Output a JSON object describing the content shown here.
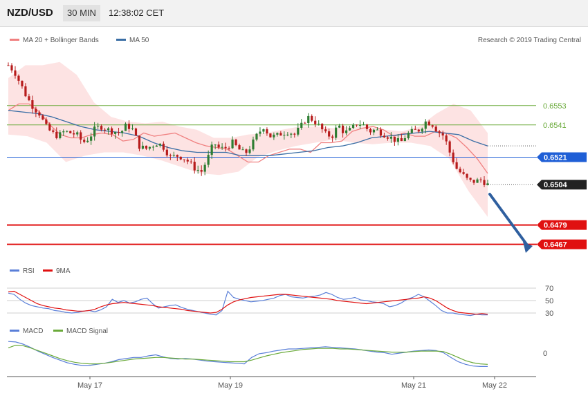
{
  "header": {
    "pair": "NZD/USD",
    "timeframe": "30 MIN",
    "time": "12:38:02 CET"
  },
  "watermark": "Research © 2019 Trading Central",
  "colors": {
    "ma20": "#f08080",
    "bollinger_fill": "#fde3e3",
    "ma50": "#3a6ea5",
    "support": "#e01010",
    "level_green": "#6aaa3a",
    "pivot_blue": "#1f5fd6",
    "bull": "#2e7d32",
    "bear": "#b71c1c",
    "rsi": "#5a7fd8",
    "rsi_ma": "#e01010",
    "macd": "#5a7fd8",
    "macd_signal": "#6aaa3a",
    "arrow": "#2f5f9f"
  },
  "chart_data": [
    {
      "type": "candlestick",
      "legend": [
        {
          "name": "MA 20 + Bollinger Bands",
          "color": "#f08080"
        },
        {
          "name": "MA 50",
          "color": "#3a6ea5"
        }
      ],
      "x_ticks": [
        "May 17",
        "May 19",
        "May 21",
        "May 22"
      ],
      "ylim": [
        0.646,
        0.6585
      ],
      "levels": [
        {
          "value": 0.6553,
          "label": "0.6553",
          "color": "#6aaa3a",
          "style": "line",
          "tag": "text"
        },
        {
          "value": 0.6541,
          "label": "0.6541",
          "color": "#6aaa3a",
          "style": "line",
          "tag": "text"
        },
        {
          "value": 0.6521,
          "label": "0.6521",
          "color": "#1f5fd6",
          "style": "line",
          "tag": "box"
        },
        {
          "value": 0.6504,
          "label": "0.6504",
          "color": "#222222",
          "style": "dotted",
          "tag": "box"
        },
        {
          "value": 0.6479,
          "label": "0.6479",
          "color": "#e01010",
          "style": "line",
          "tag": "box"
        },
        {
          "value": 0.6467,
          "label": "0.6467",
          "color": "#e01010",
          "style": "line",
          "tag": "box"
        }
      ],
      "close_path": [
        0.6578,
        0.6574,
        0.6566,
        0.6558,
        0.6552,
        0.6548,
        0.654,
        0.6536,
        0.6534,
        0.6537,
        0.6536,
        0.6535,
        0.653,
        0.6533,
        0.6539,
        0.654,
        0.6538,
        0.6537,
        0.6536,
        0.6541,
        0.6538,
        0.6528,
        0.6526,
        0.6528,
        0.653,
        0.6527,
        0.6521,
        0.6522,
        0.6521,
        0.6518,
        0.6514,
        0.6512,
        0.652,
        0.653,
        0.6526,
        0.6527,
        0.653,
        0.6526,
        0.6523,
        0.6528,
        0.6535,
        0.654,
        0.6534,
        0.6534,
        0.6536,
        0.6537,
        0.6535,
        0.654,
        0.6546,
        0.6544,
        0.654,
        0.6535,
        0.6534,
        0.6541,
        0.6536,
        0.6538,
        0.6542,
        0.6541,
        0.6537,
        0.6538,
        0.6536,
        0.6534,
        0.6532,
        0.653,
        0.6535,
        0.6537,
        0.6538,
        0.6543,
        0.6542,
        0.6537,
        0.6534,
        0.6523,
        0.6514,
        0.651,
        0.6506,
        0.6506,
        0.6507,
        0.6504
      ],
      "ma20_path": [
        0.655,
        0.6554,
        0.6554,
        0.6549,
        0.6541,
        0.6535,
        0.6533,
        0.6533,
        0.6535,
        0.6536,
        0.6535,
        0.6531,
        0.6532,
        0.6536,
        0.6534,
        0.6535,
        0.6536,
        0.6533,
        0.653,
        0.6528,
        0.6527,
        0.6526,
        0.6522,
        0.6518,
        0.6518,
        0.6522,
        0.6524,
        0.6526,
        0.6526,
        0.6524,
        0.653,
        0.653,
        0.6531,
        0.6537,
        0.6539,
        0.654,
        0.6538,
        0.6534,
        0.6536,
        0.6534,
        0.6534,
        0.6537,
        0.6536,
        0.6533,
        0.6527,
        0.652,
        0.6511
      ],
      "ma50_path": [
        0.655,
        0.6549,
        0.6548,
        0.6546,
        0.6543,
        0.654,
        0.6538,
        0.6537,
        0.6536,
        0.6534,
        0.653,
        0.6527,
        0.6525,
        0.6524,
        0.6524,
        0.6524,
        0.6522,
        0.6522,
        0.6522,
        0.6523,
        0.6524,
        0.6525,
        0.6527,
        0.6528,
        0.653,
        0.6533,
        0.6534,
        0.6535,
        0.6536,
        0.6537,
        0.6536,
        0.6535,
        0.6531,
        0.6528
      ],
      "bb_upper_path": [
        0.657,
        0.6578,
        0.6578,
        0.658,
        0.6572,
        0.6555,
        0.6546,
        0.6543,
        0.6542,
        0.6543,
        0.654,
        0.6538,
        0.6533,
        0.6533,
        0.6535,
        0.6536,
        0.6538,
        0.654,
        0.654,
        0.6539,
        0.654,
        0.654,
        0.6538,
        0.6537,
        0.654,
        0.6548,
        0.6554,
        0.655,
        0.6536
      ],
      "bb_lower_path": [
        0.6535,
        0.6534,
        0.653,
        0.6518,
        0.6522,
        0.6524,
        0.6524,
        0.6522,
        0.6519,
        0.6515,
        0.6511,
        0.651,
        0.6512,
        0.6521,
        0.6525,
        0.6528,
        0.653,
        0.6532,
        0.653,
        0.6529,
        0.653,
        0.653,
        0.6528,
        0.652,
        0.65,
        0.6484
      ]
    },
    {
      "type": "line",
      "legend": [
        {
          "name": "RSI",
          "color": "#5a7fd8"
        },
        {
          "name": "9MA",
          "color": "#e01010"
        }
      ],
      "y_ticks": [
        70,
        50,
        30
      ],
      "ylim": [
        20,
        80
      ],
      "series": [
        {
          "name": "RSI",
          "values": [
            62,
            60,
            52,
            46,
            42,
            40,
            38,
            37,
            34,
            33,
            31,
            30,
            31,
            33,
            34,
            32,
            35,
            40,
            52,
            47,
            50,
            46,
            48,
            52,
            54,
            45,
            38,
            40,
            42,
            43,
            39,
            36,
            34,
            32,
            30,
            28,
            27,
            34,
            65,
            55,
            52,
            50,
            48,
            49,
            50,
            52,
            54,
            58,
            60,
            56,
            55,
            54,
            56,
            57,
            59,
            63,
            60,
            55,
            52,
            53,
            55,
            51,
            50,
            48,
            47,
            45,
            40,
            42,
            46,
            52,
            55,
            60,
            56,
            49,
            42,
            34,
            30,
            30,
            28,
            27,
            26,
            28,
            27,
            27
          ]
        },
        {
          "name": "9MA",
          "values": [
            64,
            65,
            60,
            55,
            50,
            45,
            42,
            40,
            38,
            37,
            35,
            34,
            33,
            33,
            34,
            36,
            40,
            43,
            45,
            46,
            47,
            46,
            45,
            44,
            43,
            42,
            40,
            39,
            38,
            37,
            36,
            34,
            33,
            32,
            31,
            30,
            31,
            36,
            43,
            48,
            51,
            53,
            55,
            56,
            57,
            58,
            59,
            60,
            60,
            59,
            58,
            57,
            56,
            55,
            54,
            53,
            52,
            50,
            49,
            48,
            47,
            46,
            45,
            46,
            47,
            48,
            49,
            50,
            51,
            52,
            53,
            54,
            56,
            54,
            50,
            44,
            38,
            34,
            31,
            30,
            29,
            28,
            29,
            28
          ]
        }
      ]
    },
    {
      "type": "line",
      "legend": [
        {
          "name": "MACD",
          "color": "#5a7fd8"
        },
        {
          "name": "MACD Signal",
          "color": "#6aaa3a"
        }
      ],
      "y_ticks": [
        0
      ],
      "ylim": [
        -0.004,
        0.003
      ],
      "series": [
        {
          "name": "MACD",
          "values": [
            0.0022,
            0.0021,
            0.0017,
            0.0011,
            0.0004,
            -0.0002,
            -0.0008,
            -0.0013,
            -0.0018,
            -0.0021,
            -0.0023,
            -0.0023,
            -0.0021,
            -0.0019,
            -0.0016,
            -0.0012,
            -0.001,
            -0.0008,
            -0.0008,
            -0.0005,
            -0.0003,
            -0.0007,
            -0.001,
            -0.0011,
            -0.001,
            -0.0011,
            -0.0013,
            -0.0015,
            -0.0016,
            -0.0017,
            -0.0018,
            -0.0019,
            -0.002,
            -0.0008,
            -0.0001,
            0.0001,
            0.0004,
            0.0006,
            0.0008,
            0.0008,
            0.0009,
            0.001,
            0.0011,
            0.0012,
            0.0011,
            0.001,
            0.0009,
            0.0008,
            0.0006,
            0.0004,
            0.0002,
            0.0001,
            -0.0002,
            0.0,
            0.0002,
            0.0004,
            0.0005,
            0.0006,
            0.0005,
            0.0001,
            -0.0008,
            -0.0016,
            -0.0021,
            -0.0024,
            -0.0025,
            -0.0025
          ]
        },
        {
          "name": "MACD Signal",
          "values": [
            0.001,
            0.0015,
            0.0014,
            0.001,
            0.0005,
            0.0,
            -0.0005,
            -0.001,
            -0.0014,
            -0.0017,
            -0.0019,
            -0.002,
            -0.002,
            -0.0019,
            -0.0017,
            -0.0015,
            -0.0013,
            -0.0011,
            -0.001,
            -0.0009,
            -0.0008,
            -0.0008,
            -0.0009,
            -0.001,
            -0.0011,
            -0.0011,
            -0.0012,
            -0.0013,
            -0.0014,
            -0.0015,
            -0.0016,
            -0.0016,
            -0.0016,
            -0.0013,
            -0.0009,
            -0.0005,
            -0.0002,
            0.0001,
            0.0003,
            0.0005,
            0.0007,
            0.0008,
            0.0009,
            0.0009,
            0.0009,
            0.0008,
            0.0008,
            0.0007,
            0.0006,
            0.0005,
            0.0004,
            0.0003,
            0.0002,
            0.0002,
            0.0002,
            0.0003,
            0.0004,
            0.0004,
            0.0004,
            0.0003,
            -0.0002,
            -0.0008,
            -0.0014,
            -0.0018,
            -0.002,
            -0.0021
          ]
        }
      ]
    }
  ]
}
